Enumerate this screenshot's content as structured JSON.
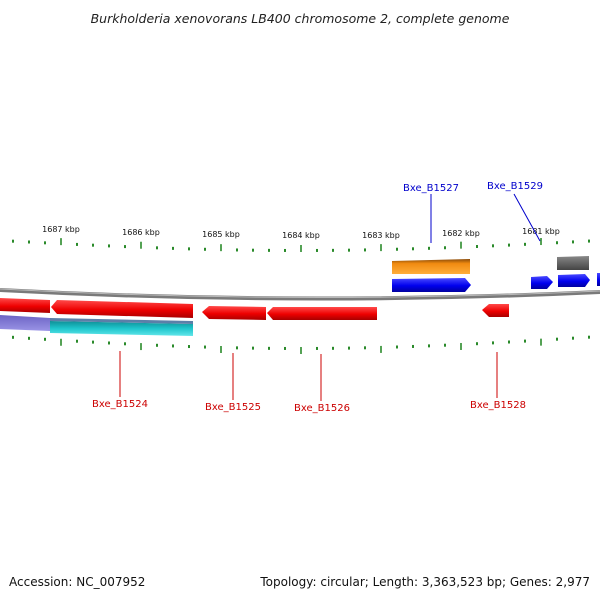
{
  "title": "Burkholderia xenovorans LB400 chromosome 2, complete genome",
  "footer": {
    "accession": "Accession: NC_007952",
    "summary": "Topology: circular; Length: 3,363,523 bp; Genes: 2,977"
  },
  "scale_labels": [
    "1687 kbp",
    "1686 kbp",
    "1685 kbp",
    "1684 kbp",
    "1683 kbp",
    "1682 kbp",
    "1681 kbp"
  ],
  "gene_labels": {
    "top": [
      "Bxe_B1527",
      "Bxe_B1529"
    ],
    "bottom": [
      "Bxe_B1524",
      "Bxe_B1525",
      "Bxe_B1526",
      "Bxe_B1528"
    ]
  },
  "colors": {
    "forward_cds": "#0000ee",
    "reverse_cds": "#ee0000",
    "forward_label": "#0000cc",
    "reverse_label": "#cc0000",
    "orange_feature": "#f08a10",
    "gray_feature": "#666666",
    "purple_feature": "#7e76d8",
    "cyan_feature": "#1fc6cc",
    "backbone": "#8a8a8a",
    "ticks": "#2a8a2a"
  }
}
